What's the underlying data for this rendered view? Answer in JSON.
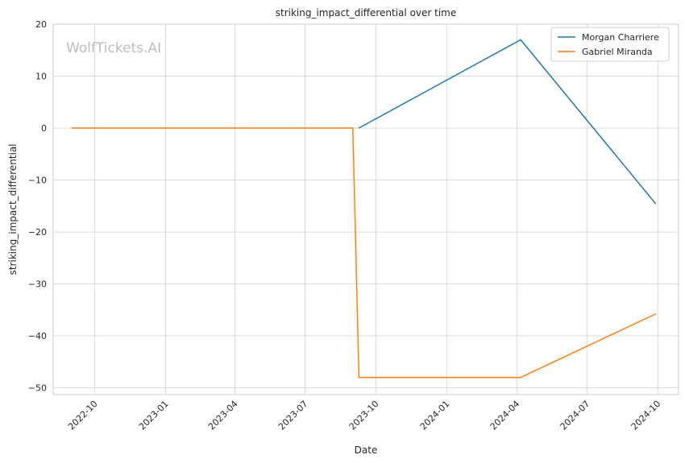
{
  "chart_data": {
    "type": "line",
    "title": "striking_impact_differential over time",
    "xlabel": "Date",
    "ylabel": "striking_impact_differential",
    "watermark": "WolfTickets.AI",
    "x_ticks": [
      "2022-10",
      "2023-01",
      "2023-04",
      "2023-07",
      "2023-10",
      "2024-01",
      "2024-04",
      "2024-07",
      "2024-10"
    ],
    "y_ticks": [
      20,
      10,
      0,
      -10,
      -20,
      -30,
      -40,
      -50
    ],
    "ylim": [
      -51.3,
      20
    ],
    "xlim": [
      "2022-08-08",
      "2024-10-28"
    ],
    "grid": true,
    "legend_position": "top-right",
    "series": [
      {
        "name": "Morgan Charriere",
        "color": "#1f77b4",
        "points": [
          {
            "x": "2023-09-09",
            "y": 0
          },
          {
            "x": "2024-04-06",
            "y": 17
          },
          {
            "x": "2024-09-28",
            "y": -14.5
          }
        ]
      },
      {
        "name": "Gabriel Miranda",
        "color": "#ff7f0e",
        "points": [
          {
            "x": "2022-09-01",
            "y": 0
          },
          {
            "x": "2023-09-01",
            "y": 0
          },
          {
            "x": "2023-09-09",
            "y": -48
          },
          {
            "x": "2024-04-06",
            "y": -48
          },
          {
            "x": "2024-09-28",
            "y": -35.8
          }
        ]
      }
    ]
  }
}
